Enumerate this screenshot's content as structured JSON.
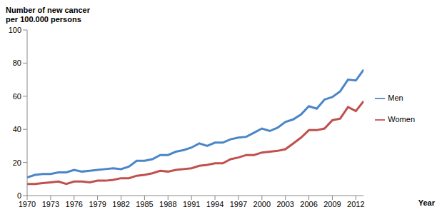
{
  "chart_data": {
    "type": "line",
    "y_label": [
      "Number of new cancer",
      "per 100.000 persons"
    ],
    "x_label": "Year",
    "x": [
      1970,
      1971,
      1972,
      1973,
      1974,
      1975,
      1976,
      1977,
      1978,
      1979,
      1980,
      1981,
      1982,
      1983,
      1984,
      1985,
      1986,
      1987,
      1988,
      1989,
      1990,
      1991,
      1992,
      1993,
      1994,
      1995,
      1996,
      1997,
      1998,
      1999,
      2000,
      2001,
      2002,
      2003,
      2004,
      2005,
      2006,
      2007,
      2008,
      2009,
      2010,
      2011,
      2012,
      2013
    ],
    "series": [
      {
        "name": "Men",
        "color": "#4a86c8",
        "values": [
          11,
          12.5,
          13,
          13,
          14,
          14,
          15.5,
          14.5,
          15,
          15.5,
          16,
          16.5,
          16,
          17.5,
          21,
          21,
          22,
          24.5,
          24.5,
          26.5,
          27.5,
          29,
          31.5,
          30,
          32,
          32,
          34,
          35,
          35.5,
          38,
          40.5,
          39,
          41,
          44.5,
          46,
          49,
          54,
          52.5,
          58,
          59.5,
          63,
          70,
          69.5,
          76
        ]
      },
      {
        "name": "Women",
        "color": "#c0504d",
        "values": [
          7,
          7,
          7.5,
          8,
          8.5,
          7,
          8.5,
          8.5,
          8,
          9,
          9,
          9.5,
          10.5,
          10.5,
          12,
          12.5,
          13.5,
          15,
          14.5,
          15.5,
          16,
          16.5,
          18,
          18.5,
          19.5,
          19.5,
          22,
          23,
          24.5,
          24.5,
          26,
          26.5,
          27,
          28,
          31.5,
          35,
          39.5,
          39.5,
          40.5,
          45.5,
          46.5,
          53.5,
          51,
          57
        ]
      }
    ],
    "xlim": [
      1970,
      2013
    ],
    "xticks": [
      1970,
      1973,
      1976,
      1979,
      1982,
      1985,
      1988,
      1991,
      1994,
      1997,
      2000,
      2003,
      2006,
      2009,
      2012
    ],
    "ylim": [
      0,
      100
    ],
    "yticks": [
      0,
      20,
      40,
      60,
      80,
      100
    ],
    "grid": false,
    "legend": "right"
  }
}
